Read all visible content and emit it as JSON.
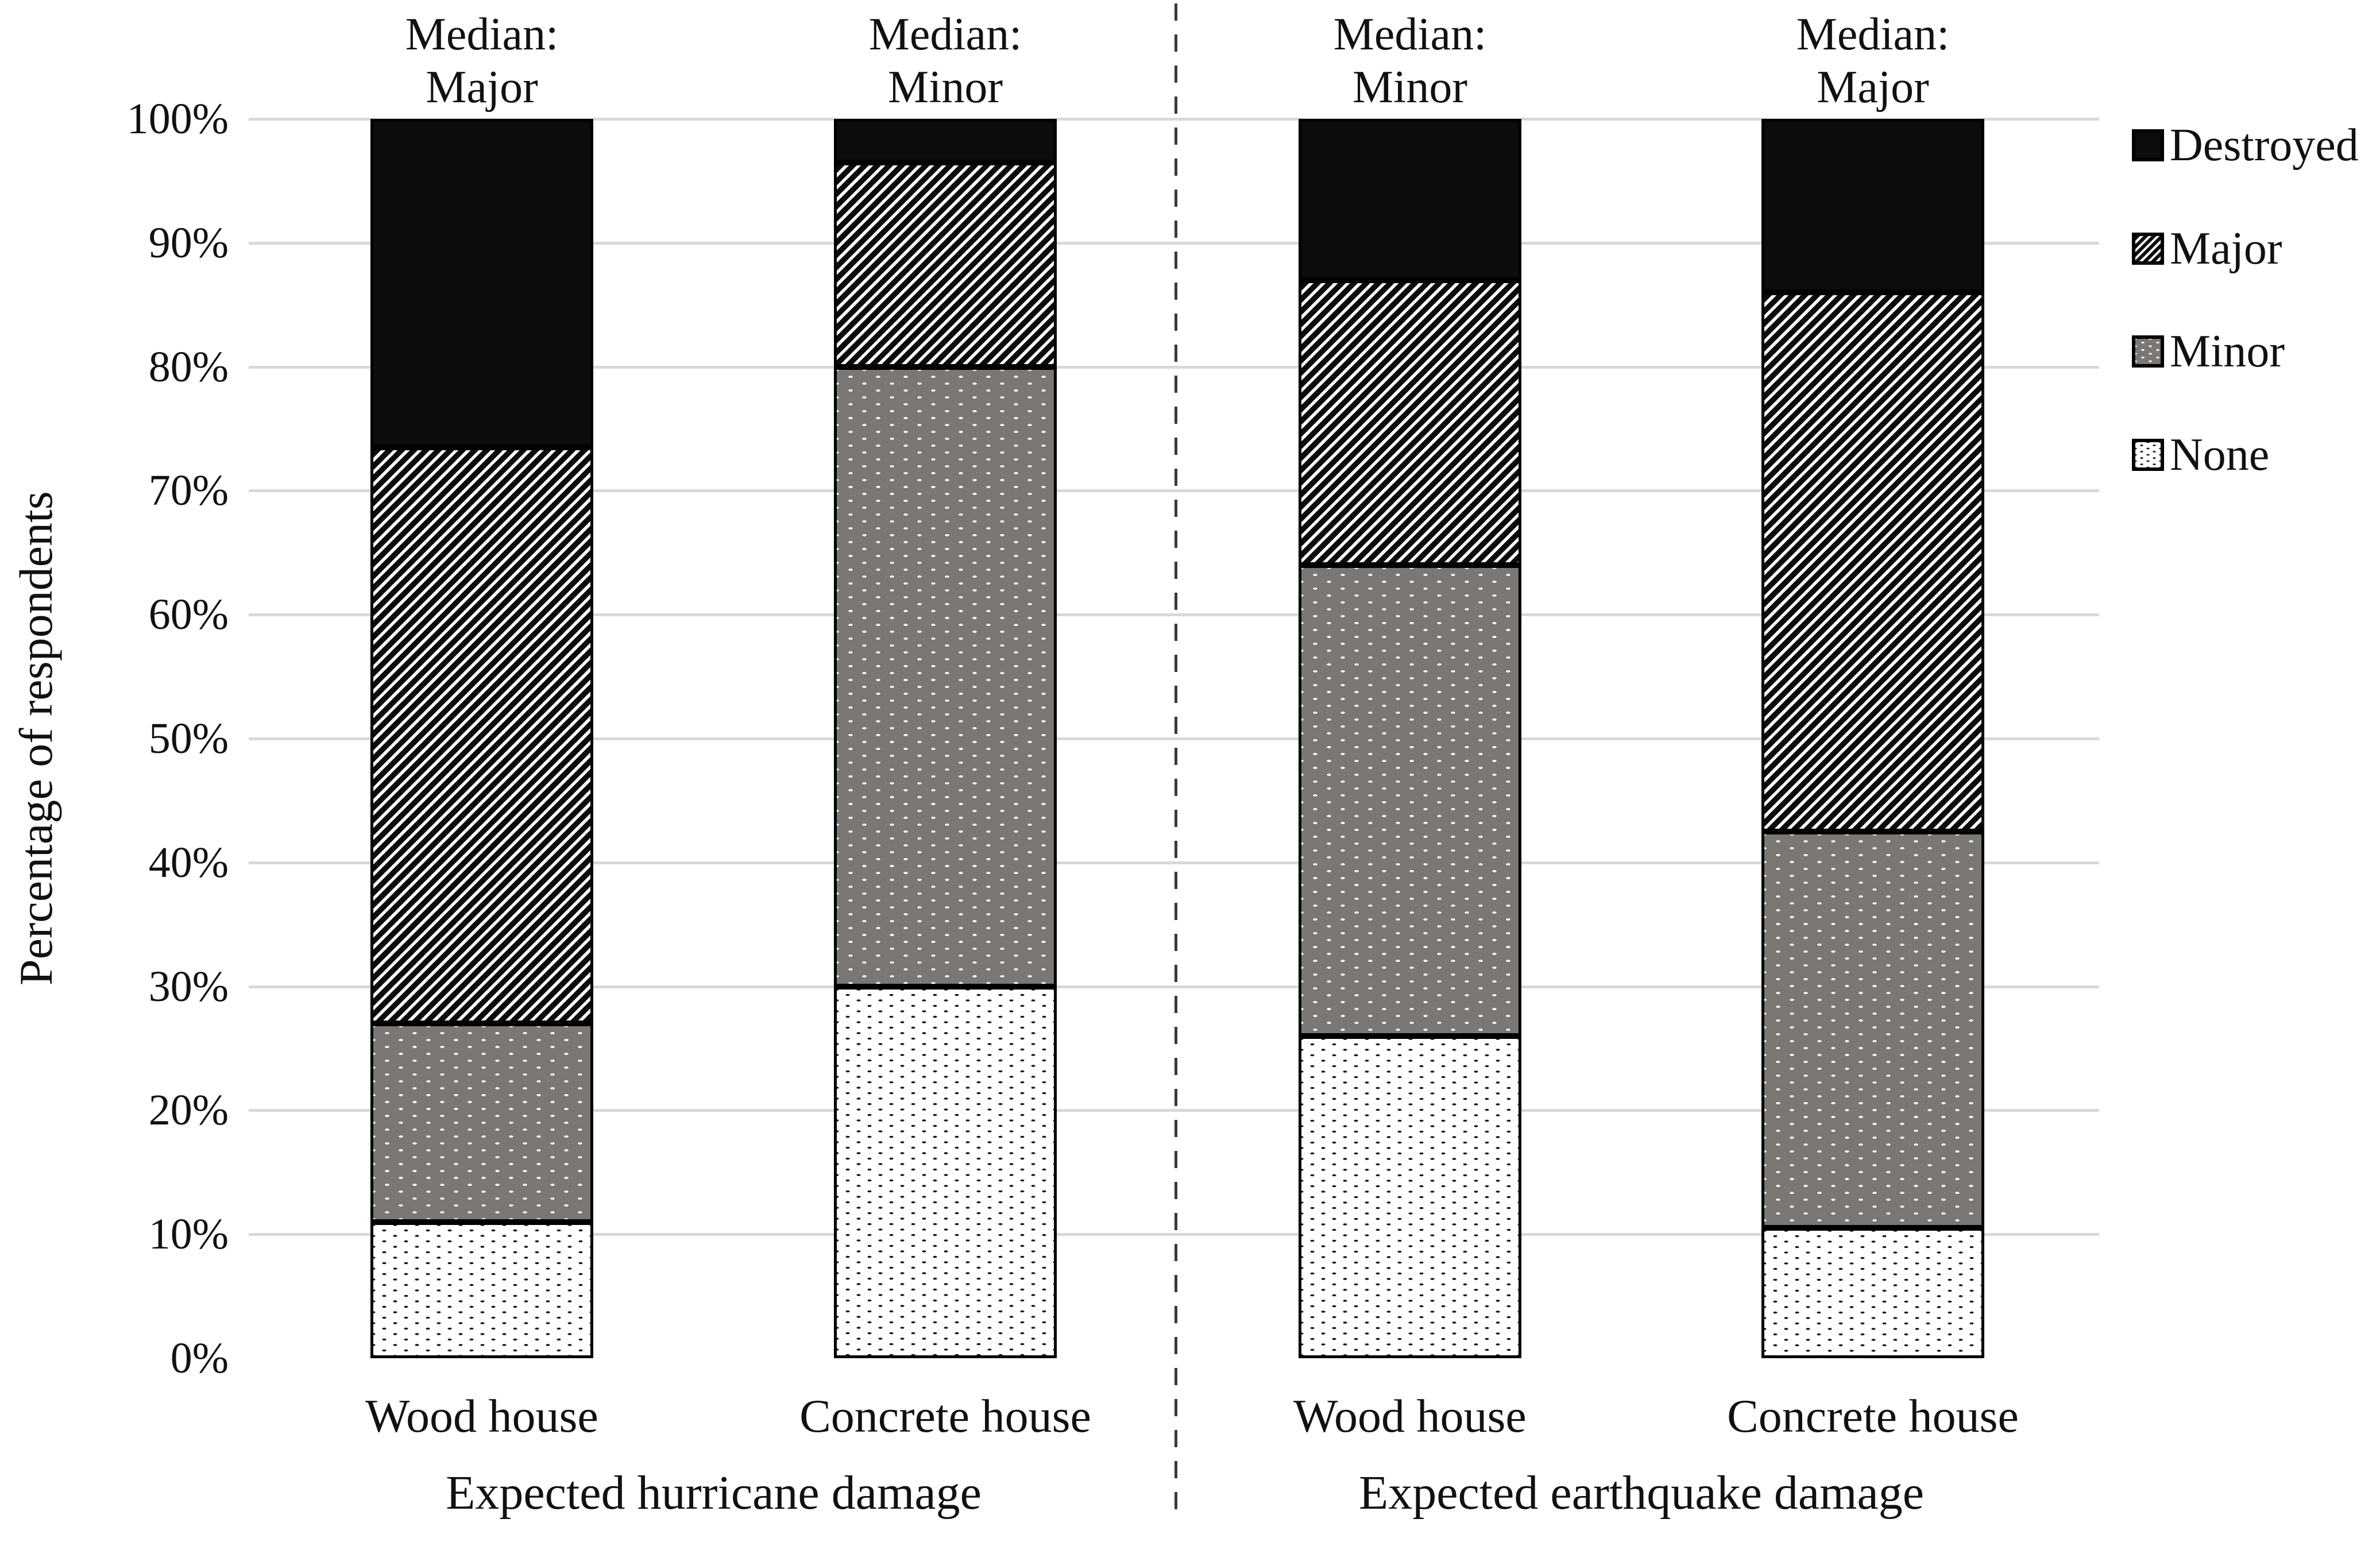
{
  "chart_data": {
    "type": "bar",
    "stacked": true,
    "title": "",
    "ylabel": "Percentage of respondents",
    "ylim": [
      0,
      100
    ],
    "ytick_step": 10,
    "yticks": [
      "0%",
      "10%",
      "20%",
      "30%",
      "40%",
      "50%",
      "60%",
      "70%",
      "80%",
      "90%",
      "100%"
    ],
    "grid": "horizontal-10pct-lines",
    "categories": [
      "Wood house",
      "Concrete house",
      "Wood house",
      "Concrete house"
    ],
    "groups": [
      {
        "label": "Expected hurricane damage",
        "category_indexes": [
          0,
          1
        ]
      },
      {
        "label": "Expected earthquake damage",
        "category_indexes": [
          2,
          3
        ]
      }
    ],
    "series": [
      {
        "name": "None",
        "pattern": "white-with-black-dots",
        "values": [
          11,
          30,
          26,
          10.5
        ]
      },
      {
        "name": "Minor",
        "pattern": "gray-with-white-dots",
        "values": [
          16,
          50,
          38,
          32
        ]
      },
      {
        "name": "Major",
        "pattern": "black-diagonal-hatch",
        "values": [
          46.5,
          16.5,
          23,
          43.5
        ]
      },
      {
        "name": "Destroyed",
        "pattern": "solid-black",
        "values": [
          26.5,
          3.5,
          13,
          14
        ]
      }
    ],
    "median_prefix": "Median:",
    "medians": [
      "Major",
      "Minor",
      "Minor",
      "Major"
    ],
    "legend_position": "right",
    "legend_order": [
      "Destroyed",
      "Major",
      "Minor",
      "None"
    ],
    "divider": "dashed-vertical-line-between-hurricane-and-earthquake-groups"
  },
  "colors": {
    "text": "#111111",
    "bar_black": "#0c0c0c",
    "minor_gray": "#7a7774",
    "gridline": "#d8d8d8",
    "background": "#ffffff"
  }
}
